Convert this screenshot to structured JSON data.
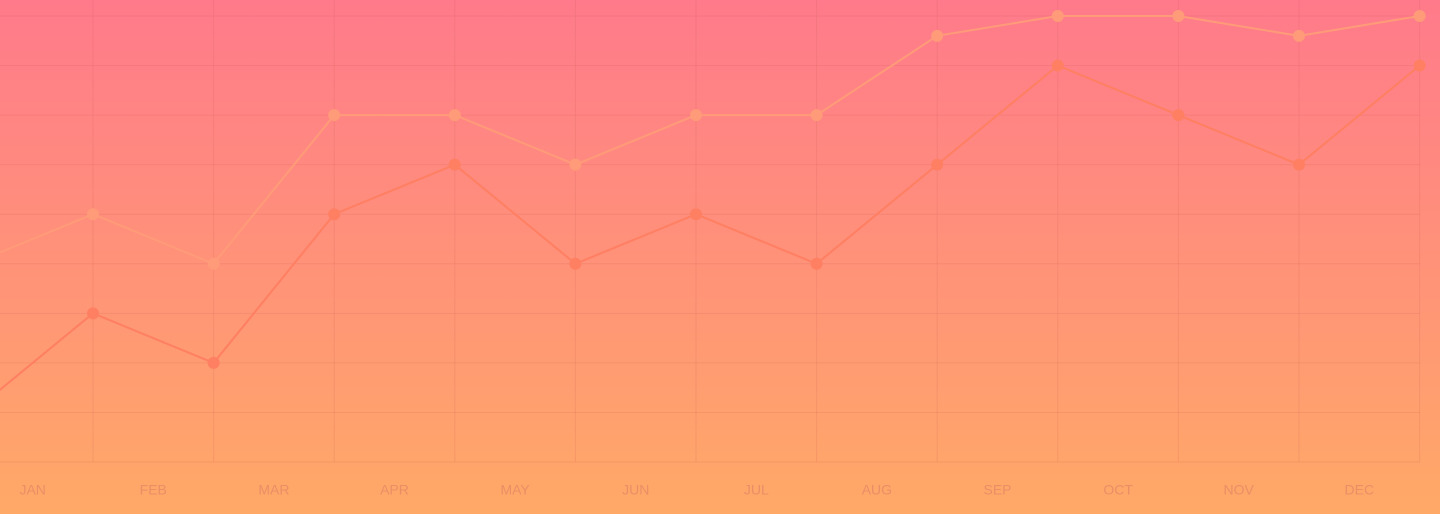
{
  "chart_data": {
    "type": "line",
    "categories": [
      null,
      "JAN",
      "FEB",
      "MAR",
      "APR",
      "MAY",
      "JUN",
      "JUL",
      "AUG",
      "SEP",
      "OCT",
      "NOV",
      "DEC"
    ],
    "series": [
      {
        "color": "#ff9b78",
        "values": [
          4,
          5,
          4,
          7,
          7,
          6,
          7,
          7,
          8.6,
          9,
          9,
          8.6,
          9
        ]
      },
      {
        "color": "#ff7f62",
        "values": [
          1,
          3,
          2,
          5,
          6,
          4,
          5,
          4,
          6,
          8,
          7,
          6,
          8
        ]
      }
    ],
    "ylim": [
      0,
      9
    ],
    "yticks": [
      0,
      1,
      2,
      3,
      4,
      5,
      6,
      7,
      8,
      9
    ],
    "grid": true
  }
}
